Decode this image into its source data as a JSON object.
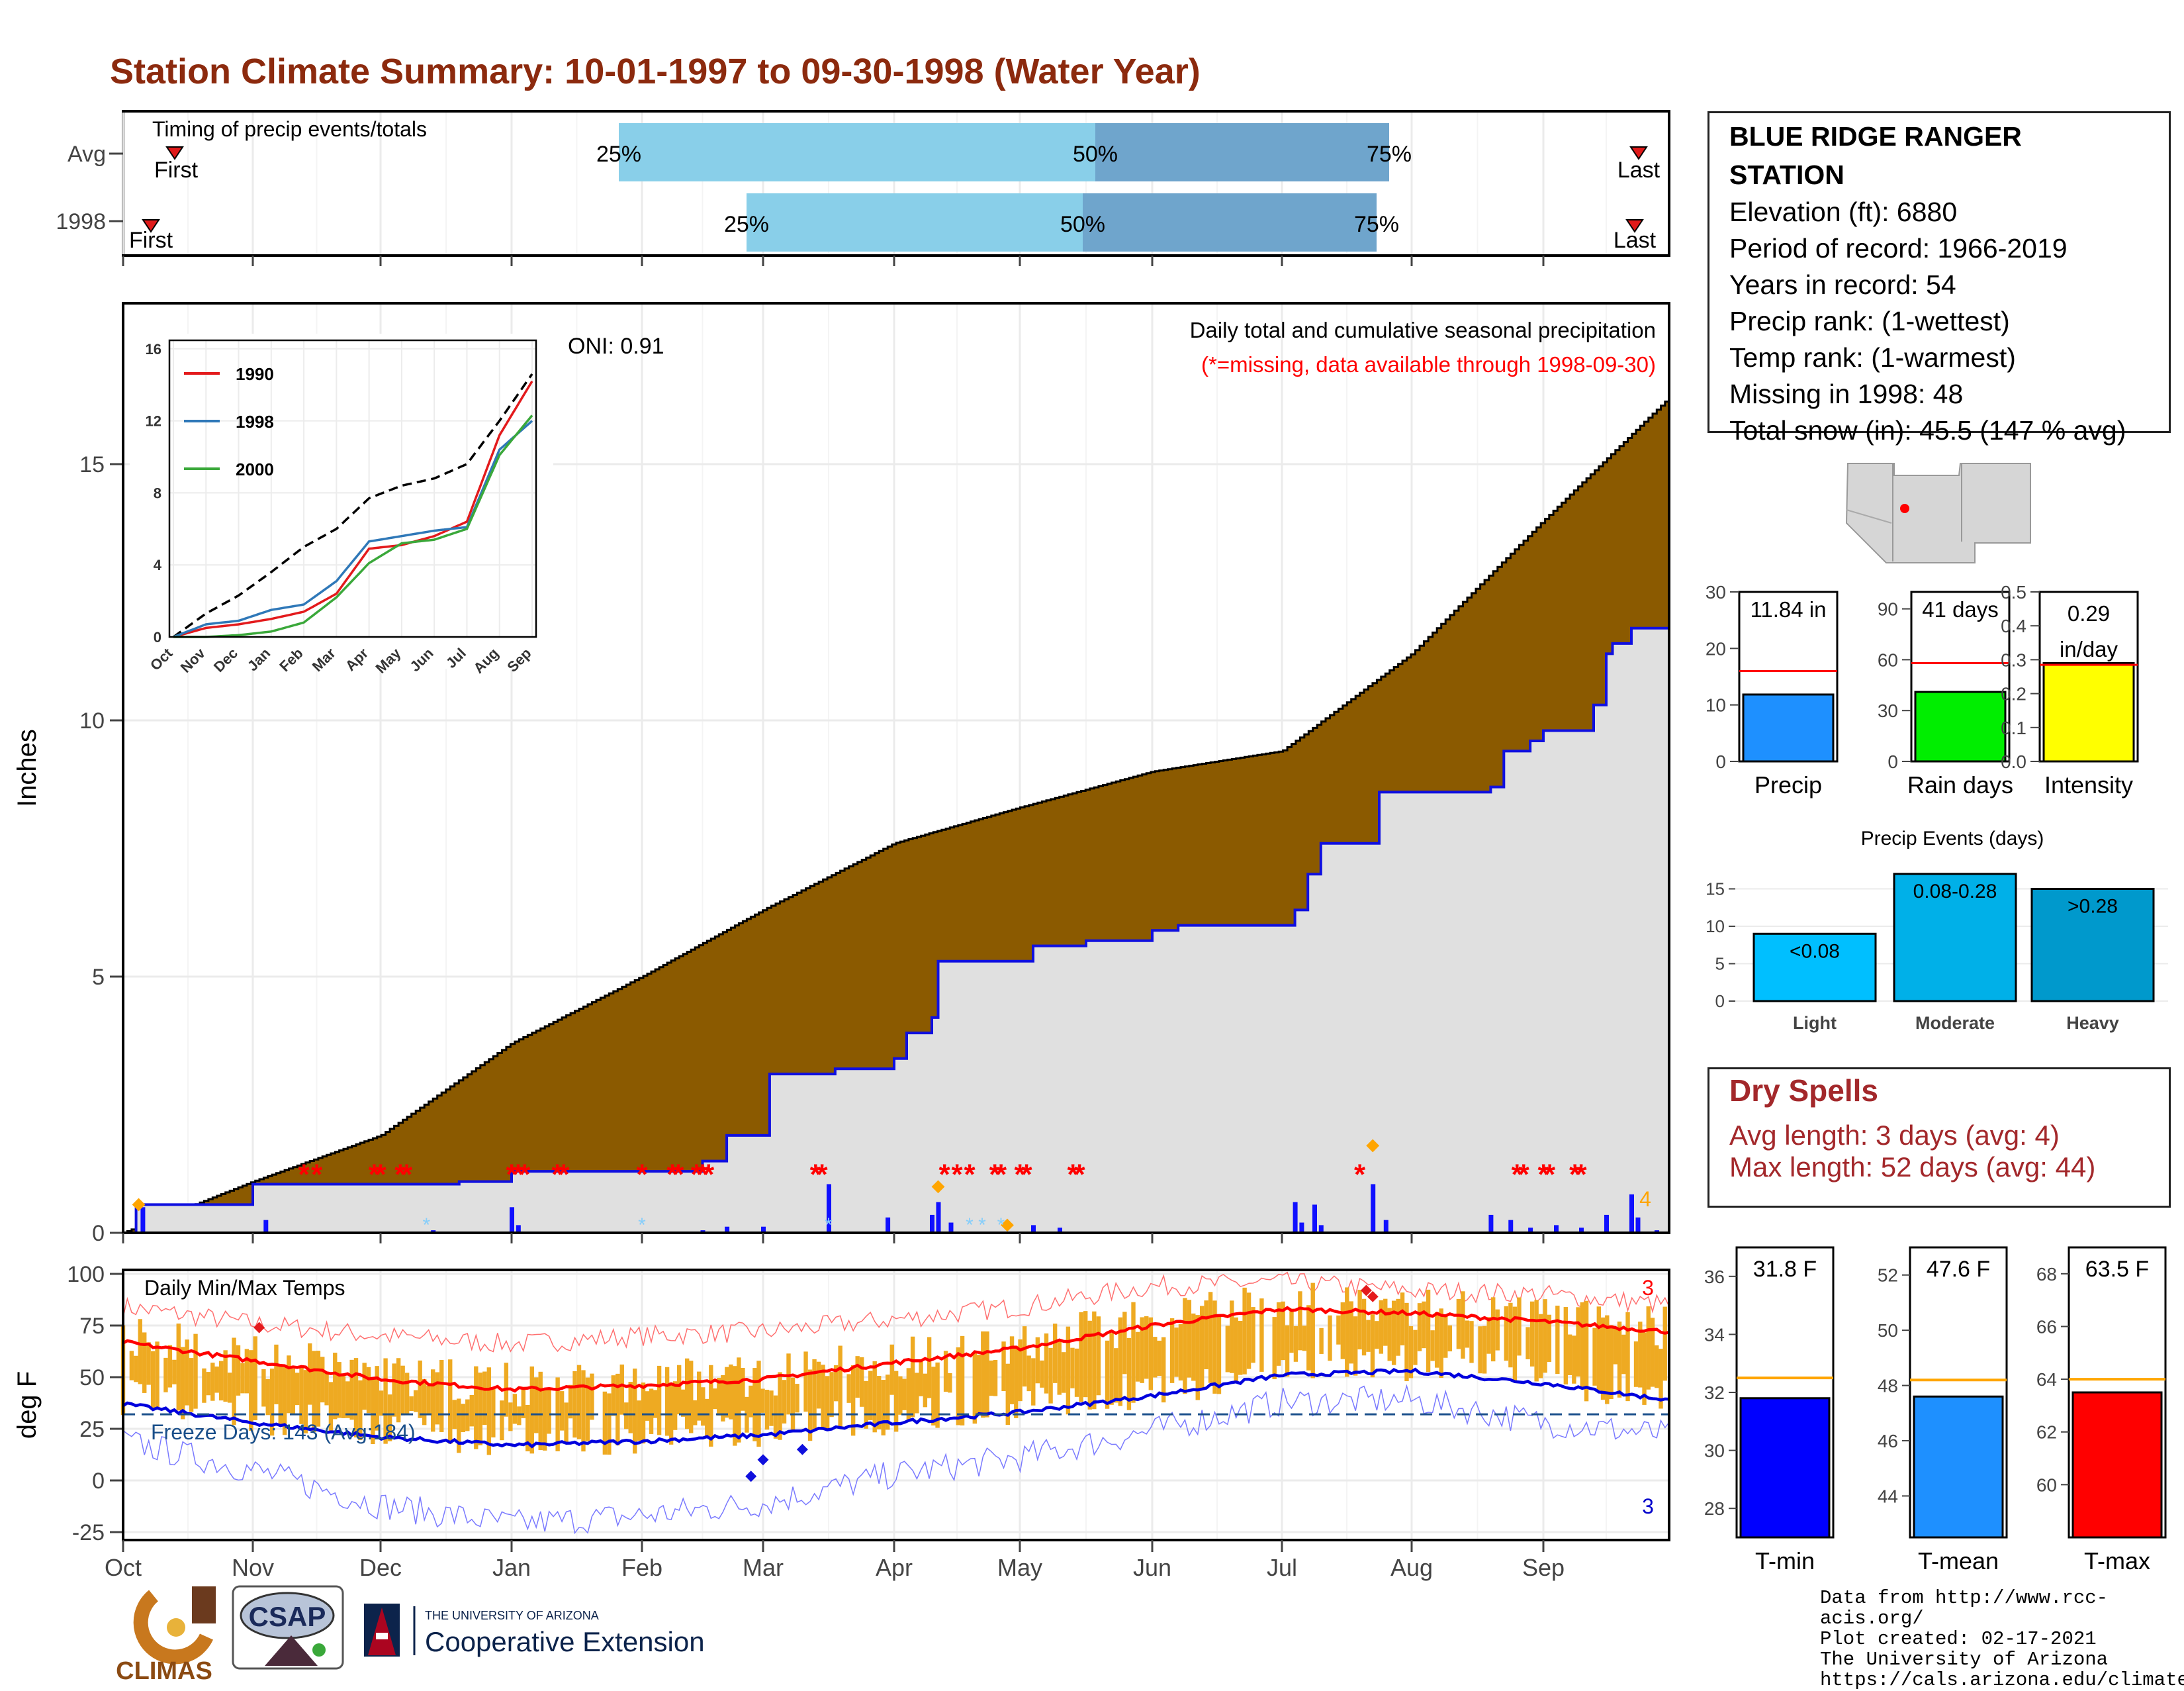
{
  "title": "Station Climate Summary: 10-01-1997 to 09-30-1998 (Water Year)",
  "timing": {
    "label": "Timing of precip events/totals",
    "rows": [
      {
        "name": "Avg",
        "first": "First",
        "p25": "25%",
        "p50": "50%",
        "p75": "75%",
        "last": "Last"
      },
      {
        "name": "1998",
        "first": "First",
        "p25": "25%",
        "p50": "50%",
        "p75": "75%",
        "last": "Last"
      }
    ],
    "colors": {
      "light": "#89cfe9",
      "dark": "#6fa5cc",
      "marker": "#e01a1a"
    }
  },
  "station": {
    "name_line1": "BLUE RIDGE RANGER",
    "name_line2": "STATION",
    "lines": [
      "Elevation (ft): 6880",
      "Period of record: 1966-2019",
      "Years in record: 54",
      "Precip rank:  (1-wettest)",
      "Temp rank:  (1-warmest)",
      "Missing in 1998: 48",
      "Total snow (in): 45.5 (147 % avg)"
    ]
  },
  "precip_panel": {
    "ylabel": "Inches",
    "oni": "ONI: 0.91",
    "note1": "Daily total and cumulative seasonal precipitation",
    "note2": "(*=missing, data available through 1998-09-30)",
    "count_label": "4",
    "colors": {
      "cum_avg": "#8b5a00",
      "cum_year_fill": "#e0e0e0",
      "cum_year_line": "#1010e0",
      "bars": "#1010ff",
      "missing": "#ff0000",
      "snow": "#87cefa",
      "record": "#ffa500"
    }
  },
  "inset": {
    "legend": [
      "1990",
      "1998",
      "2000"
    ],
    "colors": [
      "#e31a1c",
      "#2f78b8",
      "#3aa83a"
    ]
  },
  "temp_panel": {
    "ylabel": "deg F",
    "label": "Daily Min/Max Temps",
    "freeze": "Freeze Days: 143 (Avg:184)",
    "count_high": "3",
    "count_low": "3",
    "colors": {
      "bars": "#eeaa22",
      "max_avg": "#ff0000",
      "min_avg": "#0000dd",
      "freeze_line": "#1a4f8a"
    }
  },
  "months": [
    "Oct",
    "Nov",
    "Dec",
    "Jan",
    "Feb",
    "Mar",
    "Apr",
    "May",
    "Jun",
    "Jul",
    "Aug",
    "Sep"
  ],
  "summary_bars": [
    {
      "name": "Precip",
      "value_text": "11.84 in",
      "value": 11.84,
      "avg": 16,
      "ymax": 30,
      "ticks": [
        "0",
        "10",
        "20",
        "30"
      ],
      "color": "#1e90ff"
    },
    {
      "name": "Rain days",
      "value_text": "41 days",
      "value": 41,
      "avg": 58,
      "ymax": 100,
      "ticks": [
        "0",
        "30",
        "60",
        "90"
      ],
      "color": "#00ee00"
    },
    {
      "name": "Intensity",
      "value_text": "0.29 in/day",
      "value_text_1": "0.29",
      "value_text_2": "in/day",
      "value": 0.29,
      "avg": 0.285,
      "ymax": 0.5,
      "ticks": [
        "0.0",
        "0.1",
        "0.2",
        "0.3",
        "0.4",
        "0.5"
      ],
      "color": "#ffff00"
    }
  ],
  "events": {
    "title": "Precip Events (days)",
    "categories": [
      "Light",
      "Moderate",
      "Heavy"
    ],
    "labels": [
      "<0.08",
      "0.08-0.28",
      ">0.28"
    ],
    "values": [
      9,
      17,
      15
    ],
    "ticks": [
      "0",
      "5",
      "10",
      "15"
    ],
    "colors": [
      "#00bfff",
      "#00b0e8",
      "#0099cc"
    ]
  },
  "dry_spells": {
    "title": "Dry Spells",
    "avg": "Avg length: 3 days (avg: 4)",
    "max": "Max length: 52 days (avg: 44)"
  },
  "temp_bars": [
    {
      "name": "T-min",
      "value_text": "31.8 F",
      "value": 31.8,
      "avg": 32.5,
      "ymin": 27,
      "ymax": 37,
      "ticks": [
        "28",
        "30",
        "32",
        "34",
        "36"
      ],
      "color": "#0000ff"
    },
    {
      "name": "T-mean",
      "value_text": "47.6 F",
      "value": 47.6,
      "avg": 48.2,
      "ymin": 42.5,
      "ymax": 53,
      "ticks": [
        "44",
        "46",
        "48",
        "50",
        "52"
      ],
      "color": "#1e90ff"
    },
    {
      "name": "T-max",
      "value_text": "63.5 F",
      "value": 63.5,
      "avg": 64,
      "ymin": 58,
      "ymax": 69,
      "ticks": [
        "60",
        "62",
        "64",
        "66",
        "68"
      ],
      "color": "#ff0000"
    }
  ],
  "credits": [
    "Data from http://www.rcc-acis.org/",
    "Plot created: 02-17-2021",
    "The University of Arizona",
    "https://cals.arizona.edu/climate/"
  ],
  "logos": {
    "climas": "CLIMAS",
    "csap": "CSAP",
    "ua_small": "THE UNIVERSITY OF ARIZONA",
    "ua_big": "Cooperative Extension"
  },
  "chart_data": [
    {
      "type": "area",
      "name": "cumulative precipitation",
      "x": [
        "Oct",
        "Nov",
        "Dec",
        "Jan",
        "Feb",
        "Mar",
        "Apr",
        "May",
        "Jun",
        "Jul",
        "Aug",
        "Sep",
        "Sep-30"
      ],
      "series": [
        {
          "name": "average cumulative",
          "values": [
            0,
            1.0,
            1.9,
            3.7,
            5.0,
            6.3,
            7.6,
            8.3,
            9.0,
            9.4,
            11.3,
            13.9,
            16.3
          ]
        },
        {
          "name": "1998 cumulative",
          "values": [
            0,
            0.9,
            1.0,
            1.6,
            1.9,
            3.1,
            5.3,
            5.7,
            6.0,
            6.0,
            10.3,
            10.7,
            11.84
          ]
        }
      ],
      "ylim": [
        0,
        17.5
      ],
      "yticks": [
        0,
        5,
        10,
        15
      ]
    },
    {
      "type": "line",
      "name": "inset cumulative",
      "x": [
        "Oct",
        "Nov",
        "Dec",
        "Jan",
        "Feb",
        "Mar",
        "Apr",
        "May",
        "Jun",
        "Jul",
        "Aug",
        "Sep"
      ],
      "series": [
        {
          "name": "average",
          "values": [
            0,
            1.3,
            2.3,
            3.6,
            5.0,
            6.0,
            7.7,
            8.4,
            8.8,
            9.6,
            12.0,
            14.6
          ]
        },
        {
          "name": "1990",
          "values": [
            0,
            0.5,
            0.7,
            1.0,
            1.4,
            2.4,
            4.9,
            5.1,
            5.6,
            6.4,
            11.2,
            14.2
          ]
        },
        {
          "name": "1998",
          "values": [
            0,
            0.7,
            0.9,
            1.5,
            1.8,
            3.1,
            5.3,
            5.6,
            5.9,
            6.1,
            10.4,
            12.0
          ]
        },
        {
          "name": "2000",
          "values": [
            0,
            0.0,
            0.1,
            0.3,
            0.8,
            2.2,
            4.1,
            5.2,
            5.4,
            6.0,
            10.1,
            12.3
          ]
        }
      ],
      "ylim": [
        0,
        16
      ],
      "yticks": [
        0,
        4,
        8,
        12,
        16
      ]
    },
    {
      "type": "line",
      "name": "daily temperatures",
      "x": [
        "Oct",
        "Nov",
        "Dec",
        "Jan",
        "Feb",
        "Mar",
        "Apr",
        "May",
        "Jun",
        "Jul",
        "Aug",
        "Sep",
        "Sep-30"
      ],
      "series": [
        {
          "name": "avg max",
          "values": [
            67,
            58,
            49,
            44,
            46,
            49,
            57,
            64,
            75,
            83,
            81,
            77,
            72
          ]
        },
        {
          "name": "avg min",
          "values": [
            37,
            28,
            21,
            17,
            19,
            22,
            28,
            33,
            41,
            51,
            53,
            47,
            39
          ]
        },
        {
          "name": "record max",
          "values": [
            84,
            76,
            70,
            66,
            70,
            72,
            78,
            84,
            94,
            96,
            92,
            90,
            85
          ]
        },
        {
          "name": "record min",
          "values": [
            19,
            5,
            -12,
            -21,
            -17,
            -11,
            3,
            11,
            24,
            38,
            39,
            28,
            22
          ]
        }
      ],
      "freeze_threshold": 32,
      "ylim": [
        -28,
        102
      ],
      "yticks": [
        -25,
        0,
        25,
        50,
        75,
        100
      ]
    }
  ]
}
